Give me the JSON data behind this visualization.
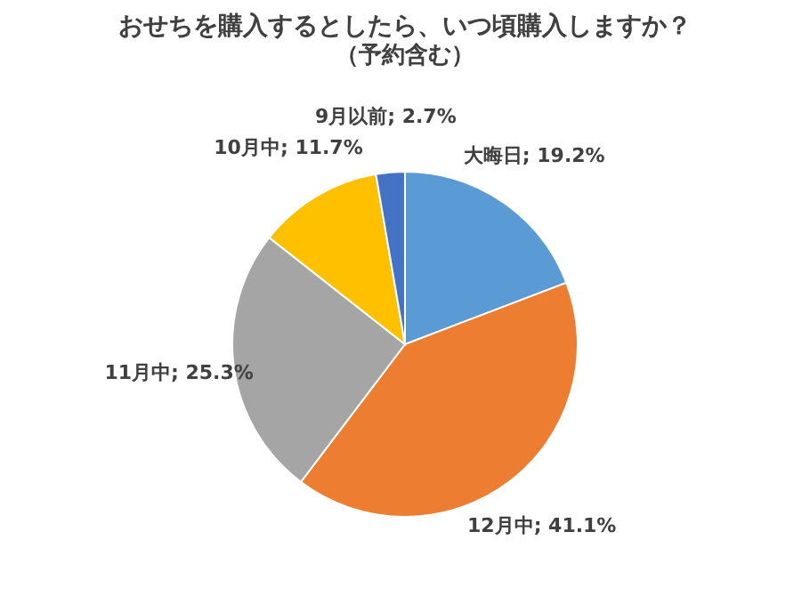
{
  "chart_data": {
    "type": "pie",
    "title": "おせちを購入するとしたら、いつ頃購入しますか？",
    "subtitle": "（予約含む）",
    "categories": [
      "大晦日",
      "12月中",
      "11月中",
      "10月中",
      "9月以前"
    ],
    "values": [
      19.2,
      41.1,
      25.3,
      11.7,
      2.7
    ],
    "colors": [
      "#5b9bd5",
      "#ed7d31",
      "#a5a5a5",
      "#ffc000",
      "#4472c4"
    ],
    "value_labels": [
      "; 19.2%",
      "; 41.1%",
      "; 25.3%",
      "; 11.7%",
      "; 2.7%"
    ]
  }
}
